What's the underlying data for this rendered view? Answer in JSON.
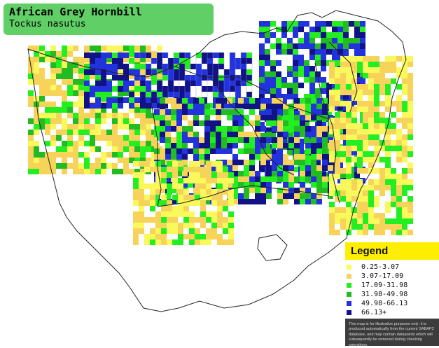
{
  "header": {
    "common_name": "African Grey Hornbill",
    "scientific_name": "Tockus nasutus"
  },
  "legend": {
    "title": "Legend",
    "items": [
      {
        "label": "0.25-3.07",
        "color": "#f9f95c"
      },
      {
        "label": "3.07-17.09",
        "color": "#f8d35a"
      },
      {
        "label": "17.09-31.98",
        "color": "#22ee22"
      },
      {
        "label": "31.98-49.98",
        "color": "#22bb22"
      },
      {
        "label": "49.98-66.13",
        "color": "#2233dd"
      },
      {
        "label": "66.13+",
        "color": "#111188"
      }
    ],
    "note": "This map is for illustrative purposes only; it is produced automatically from the current SABAP2 database, and may contain datapoints which will subsequently be removed during checking operations."
  },
  "map_colors": {
    "background": "#ffffff",
    "border": "#222222",
    "grid": "#8f9bd4"
  }
}
